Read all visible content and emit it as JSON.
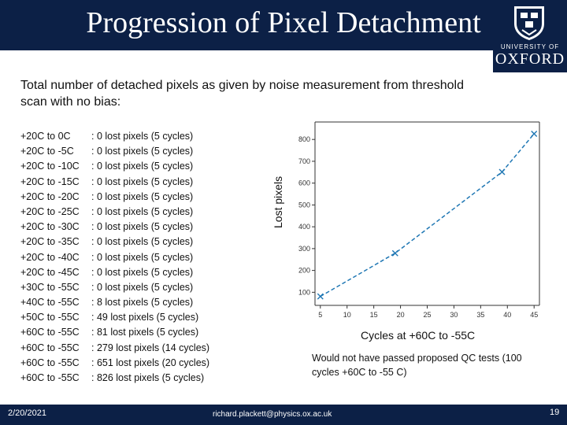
{
  "slide": {
    "title": "Progression of Pixel Detachment",
    "logo": {
      "line1": "UNIVERSITY OF",
      "line2": "OXFORD"
    },
    "intro": "Total number of detached pixels as given by noise measurement from threshold scan with no bias:",
    "results": [
      {
        "range": "+20C to 0C",
        "result": ": 0 lost pixels (5 cycles)"
      },
      {
        "range": "+20C to -5C",
        "result": ": 0 lost pixels (5 cycles)"
      },
      {
        "range": "+20C to -10C",
        "result": ": 0 lost pixels (5 cycles)"
      },
      {
        "range": "+20C to -15C",
        "result": ": 0 lost pixels (5 cycles)"
      },
      {
        "range": "+20C to -20C",
        "result": ": 0 lost pixels (5 cycles)"
      },
      {
        "range": "+20C to -25C",
        "result": ": 0 lost pixels (5 cycles)"
      },
      {
        "range": "+20C to -30C",
        "result": ": 0 lost pixels (5 cycles)"
      },
      {
        "range": "+20C to -35C",
        "result": ": 0 lost pixels (5 cycles)"
      },
      {
        "range": "+20C to -40C",
        "result": ": 0 lost pixels (5 cycles)"
      },
      {
        "range": "+20C to -45C",
        "result": ": 0 lost pixels (5 cycles)"
      },
      {
        "range": "+30C to -55C",
        "result": ": 0 lost pixels (5 cycles)"
      },
      {
        "range": "+40C to -55C",
        "result": ": 8 lost pixels (5 cycles)"
      },
      {
        "range": "+50C to -55C",
        "result": ": 49 lost pixels (5 cycles)"
      },
      {
        "range": "+60C to -55C",
        "result": ": 81 lost pixels (5 cycles)"
      },
      {
        "range": "+60C to -55C",
        "result": ": 279 lost pixels (14 cycles)"
      },
      {
        "range": "+60C to -55C",
        "result": ": 651 lost pixels (20 cycles)"
      },
      {
        "range": "+60C to -55C",
        "result": ": 826 lost pixels (5 cycles)"
      }
    ],
    "note": "Would not have passed proposed QC tests (100 cycles +60C to -55 C)",
    "footer": {
      "date": "2/20/2021",
      "email": "richard.plackett@physics.ox.ac.uk",
      "page": "19"
    }
  },
  "chart_data": {
    "type": "line",
    "xlabel": "Cycles at +60C to -55C",
    "ylabel": "Lost pixels",
    "x": [
      5,
      19,
      39,
      45
    ],
    "series": [
      {
        "values": [
          81,
          279,
          651,
          826
        ]
      }
    ],
    "xlim": [
      4,
      46
    ],
    "ylim": [
      40,
      880
    ],
    "xticks": [
      5,
      10,
      15,
      20,
      25,
      30,
      35,
      40,
      45
    ],
    "yticks": [
      100,
      200,
      300,
      400,
      500,
      600,
      700,
      800
    ],
    "grid": false,
    "line_style": "dashed",
    "marker": "x",
    "color": "#1f77b4"
  }
}
